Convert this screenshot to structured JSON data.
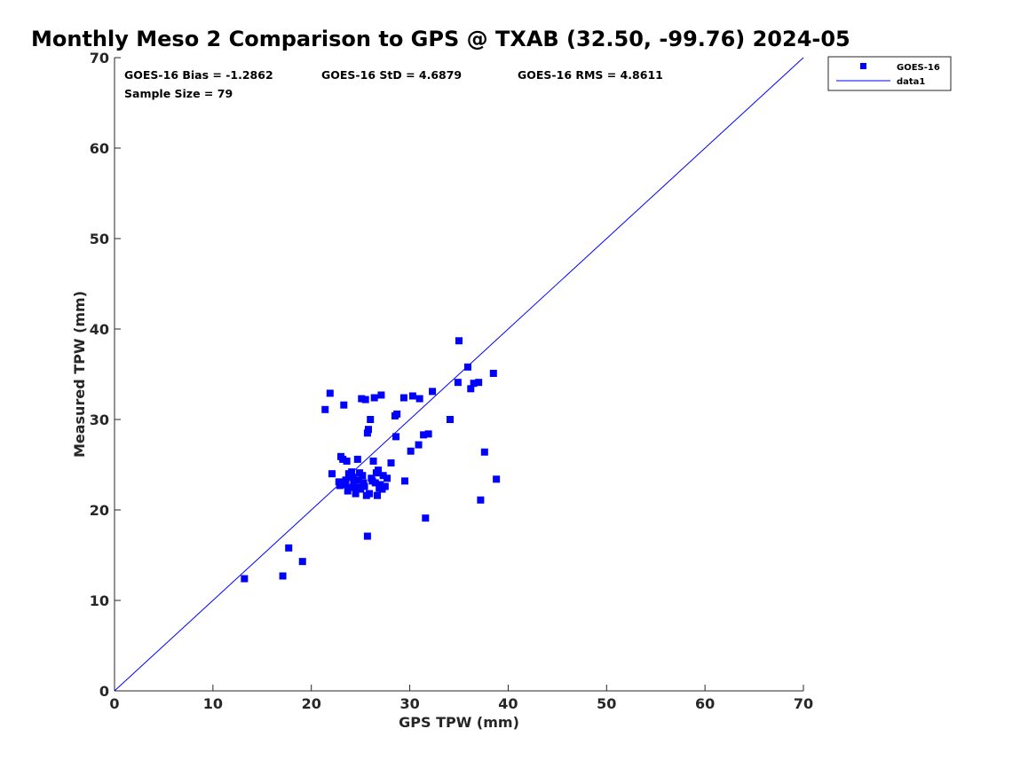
{
  "chart_data": {
    "type": "scatter",
    "title": "Monthly Meso 2 Comparison to GPS @ TXAB (32.50, -99.76) 2024-05",
    "xlabel": "GPS TPW (mm)",
    "ylabel": "Measured TPW (mm)",
    "xlim": [
      0,
      70
    ],
    "ylim": [
      0,
      70
    ],
    "xticks": [
      "0",
      "10",
      "20",
      "30",
      "40",
      "50",
      "60",
      "70"
    ],
    "yticks": [
      "0",
      "10",
      "20",
      "30",
      "40",
      "50",
      "60",
      "70"
    ],
    "grid": false,
    "legend_position": "top-right, outside plot",
    "stats": {
      "bias": "GOES-16 Bias = -1.2862",
      "std": "GOES-16 StD = 4.6879",
      "rms": "GOES-16 RMS = 4.8611",
      "sample": "Sample Size = 79"
    },
    "colors": {
      "marker": "#0000ff",
      "line": "#0000ff"
    },
    "series": [
      {
        "name": "GOES-16",
        "marker": "square",
        "points": [
          [
            13.2,
            12.4
          ],
          [
            17.1,
            12.7
          ],
          [
            17.7,
            15.8
          ],
          [
            19.1,
            14.3
          ],
          [
            21.4,
            31.1
          ],
          [
            21.9,
            32.9
          ],
          [
            22.1,
            24.0
          ],
          [
            22.8,
            23.1
          ],
          [
            22.9,
            22.7
          ],
          [
            23.0,
            25.9
          ],
          [
            23.2,
            25.6
          ],
          [
            23.3,
            31.6
          ],
          [
            23.4,
            22.8
          ],
          [
            23.5,
            23.3
          ],
          [
            23.6,
            25.4
          ],
          [
            23.7,
            22.1
          ],
          [
            23.9,
            23.8
          ],
          [
            24.0,
            22.5
          ],
          [
            24.1,
            24.2
          ],
          [
            24.3,
            23.0
          ],
          [
            24.5,
            21.8
          ],
          [
            24.6,
            22.5
          ],
          [
            24.7,
            25.6
          ],
          [
            24.8,
            23.3
          ],
          [
            24.9,
            24.1
          ],
          [
            25.0,
            22.3
          ],
          [
            25.1,
            32.3
          ],
          [
            25.2,
            23.8
          ],
          [
            25.4,
            22.6
          ],
          [
            25.5,
            32.2
          ],
          [
            25.6,
            21.6
          ],
          [
            25.7,
            28.5
          ],
          [
            25.7,
            17.1
          ],
          [
            25.8,
            28.9
          ],
          [
            25.9,
            21.8
          ],
          [
            26.0,
            30.0
          ],
          [
            26.1,
            23.5
          ],
          [
            26.3,
            25.4
          ],
          [
            26.4,
            32.4
          ],
          [
            26.5,
            23.0
          ],
          [
            26.6,
            24.1
          ],
          [
            26.7,
            21.6
          ],
          [
            26.8,
            24.4
          ],
          [
            27.0,
            22.8
          ],
          [
            27.1,
            32.7
          ],
          [
            27.2,
            22.3
          ],
          [
            27.3,
            23.8
          ],
          [
            27.5,
            22.6
          ],
          [
            27.7,
            23.5
          ],
          [
            28.1,
            25.2
          ],
          [
            28.5,
            30.4
          ],
          [
            28.6,
            28.1
          ],
          [
            28.7,
            30.6
          ],
          [
            29.4,
            32.4
          ],
          [
            29.5,
            23.2
          ],
          [
            30.1,
            26.5
          ],
          [
            30.3,
            32.6
          ],
          [
            30.9,
            27.2
          ],
          [
            31.0,
            32.3
          ],
          [
            31.4,
            28.3
          ],
          [
            31.6,
            19.1
          ],
          [
            31.9,
            28.4
          ],
          [
            32.3,
            33.1
          ],
          [
            34.1,
            30.0
          ],
          [
            34.9,
            34.1
          ],
          [
            35.0,
            38.7
          ],
          [
            35.9,
            35.8
          ],
          [
            36.2,
            33.4
          ],
          [
            36.5,
            34.0
          ],
          [
            37.0,
            34.1
          ],
          [
            37.2,
            21.1
          ],
          [
            37.6,
            26.4
          ],
          [
            38.5,
            35.1
          ],
          [
            38.8,
            23.4
          ],
          [
            24.2,
            23.6
          ],
          [
            25.3,
            23.0
          ],
          [
            26.9,
            22.4
          ],
          [
            23.8,
            24.0
          ],
          [
            26.2,
            23.2
          ]
        ]
      },
      {
        "name": "data1",
        "style": "line",
        "points": [
          [
            0,
            0
          ],
          [
            70,
            70
          ]
        ]
      }
    ]
  }
}
